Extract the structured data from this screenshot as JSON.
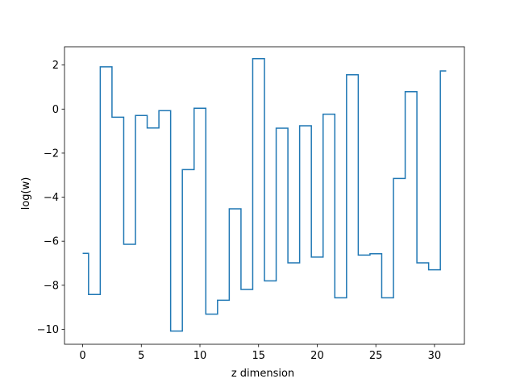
{
  "chart_data": {
    "type": "line",
    "drawstyle": "steps-mid",
    "title": "",
    "xlabel": "z dimension",
    "ylabel": "log(w)",
    "xlim": [
      -1.55,
      32.55
    ],
    "ylim": [
      -10.68,
      2.83
    ],
    "xticks": [
      0,
      5,
      10,
      15,
      20,
      25,
      30
    ],
    "xtick_labels": [
      "0",
      "5",
      "10",
      "15",
      "20",
      "25",
      "30"
    ],
    "yticks": [
      2,
      0,
      -2,
      -4,
      -6,
      -8,
      -10
    ],
    "ytick_labels": [
      "2",
      "0",
      "−2",
      "−4",
      "−6",
      "−8",
      "−10"
    ],
    "grid": false,
    "legend": "none",
    "series": [
      {
        "color": "#1f77b4",
        "x": [
          0,
          1,
          2,
          3,
          4,
          5,
          6,
          7,
          8,
          9,
          10,
          11,
          12,
          13,
          14,
          15,
          16,
          17,
          18,
          19,
          20,
          21,
          22,
          23,
          24,
          25,
          26,
          27,
          28,
          29,
          30,
          31
        ],
        "y": [
          -6.55,
          -8.42,
          1.92,
          -0.37,
          -6.14,
          -0.29,
          -0.86,
          -0.07,
          -10.08,
          -2.75,
          0.04,
          -9.31,
          -8.68,
          -4.53,
          -8.19,
          2.29,
          -7.8,
          -0.87,
          -6.98,
          -0.76,
          -6.72,
          -0.23,
          -8.57,
          1.56,
          -6.63,
          -6.57,
          -8.57,
          -3.15,
          0.79,
          -6.98,
          -7.3,
          1.73
        ]
      }
    ]
  }
}
